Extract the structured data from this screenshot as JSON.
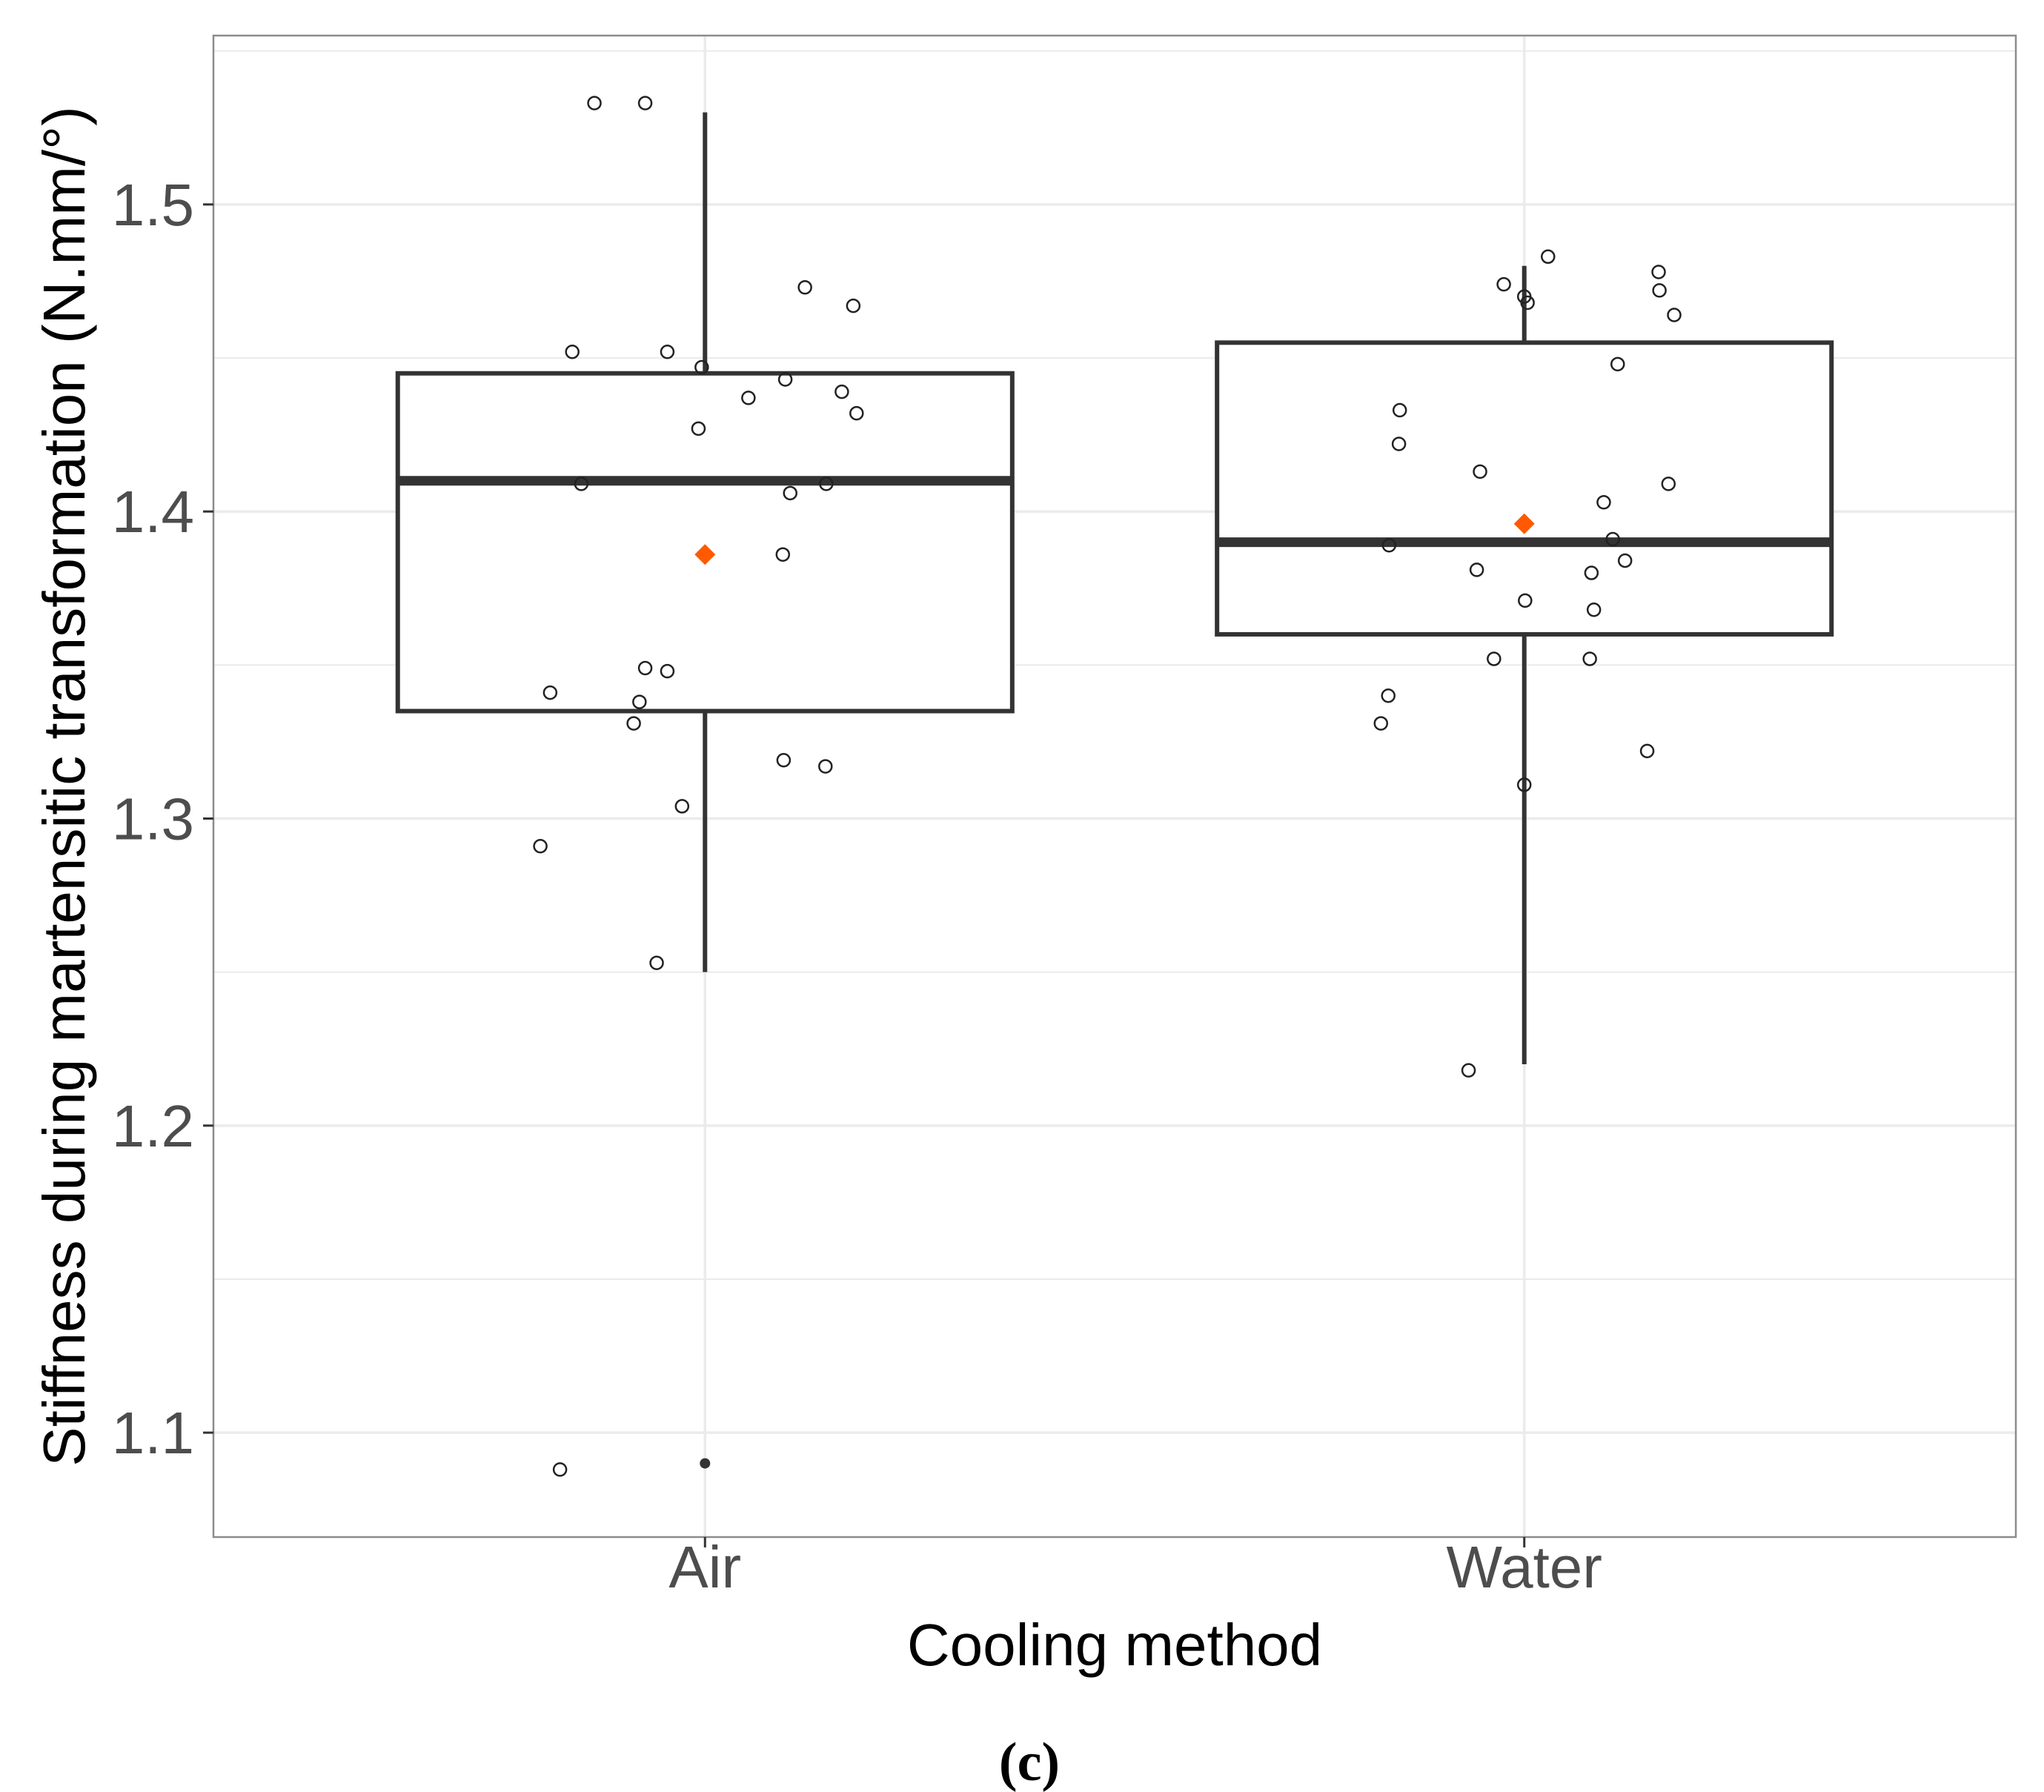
{
  "chart_data": {
    "type": "boxplot",
    "xlabel": "Cooling method",
    "ylabel": "Stiffness during martensitic transformation (N.mm/°)",
    "ylim": [
      1.066,
      1.555
    ],
    "yticks": [
      1.1,
      1.2,
      1.3,
      1.4,
      1.5
    ],
    "ytick_labels": [
      "1.1",
      "1.2",
      "1.3",
      "1.4",
      "1.5"
    ],
    "grid": true,
    "caption": "(c)",
    "colors": {
      "box": "#333333",
      "mean": "#ff5a00",
      "grid": "#ebebeb",
      "panel_border": "#8c8c8c"
    },
    "categories": [
      "Air",
      "Water"
    ],
    "groups": [
      {
        "name": "Air",
        "q1": 1.335,
        "median": 1.41,
        "q3": 1.445,
        "whisker_low": 1.25,
        "whisker_high": 1.53,
        "mean": 1.386,
        "outliers": [
          1.09
        ],
        "points": [
          {
            "jitter": -0.135,
            "value": 1.533
          },
          {
            "jitter": -0.073,
            "value": 1.533
          },
          {
            "jitter": 0.122,
            "value": 1.473
          },
          {
            "jitter": 0.181,
            "value": 1.467
          },
          {
            "jitter": -0.162,
            "value": 1.452
          },
          {
            "jitter": -0.046,
            "value": 1.452
          },
          {
            "jitter": -0.004,
            "value": 1.447
          },
          {
            "jitter": 0.098,
            "value": 1.443
          },
          {
            "jitter": 0.167,
            "value": 1.439
          },
          {
            "jitter": 0.053,
            "value": 1.437
          },
          {
            "jitter": 0.185,
            "value": 1.432
          },
          {
            "jitter": -0.008,
            "value": 1.427
          },
          {
            "jitter": -0.151,
            "value": 1.409
          },
          {
            "jitter": 0.148,
            "value": 1.409
          },
          {
            "jitter": 0.104,
            "value": 1.406
          },
          {
            "jitter": 0.095,
            "value": 1.386
          },
          {
            "jitter": -0.073,
            "value": 1.349
          },
          {
            "jitter": -0.046,
            "value": 1.348
          },
          {
            "jitter": -0.189,
            "value": 1.341
          },
          {
            "jitter": -0.08,
            "value": 1.338
          },
          {
            "jitter": -0.087,
            "value": 1.331
          },
          {
            "jitter": 0.096,
            "value": 1.319
          },
          {
            "jitter": 0.147,
            "value": 1.317
          },
          {
            "jitter": -0.028,
            "value": 1.304
          },
          {
            "jitter": -0.201,
            "value": 1.291
          },
          {
            "jitter": -0.059,
            "value": 1.253
          },
          {
            "jitter": -0.177,
            "value": 1.088
          }
        ]
      },
      {
        "name": "Water",
        "q1": 1.36,
        "median": 1.39,
        "q3": 1.455,
        "whisker_low": 1.22,
        "whisker_high": 1.48,
        "mean": 1.396,
        "outliers": [],
        "points": [
          {
            "jitter": 0.029,
            "value": 1.483
          },
          {
            "jitter": 0.164,
            "value": 1.478
          },
          {
            "jitter": -0.025,
            "value": 1.474
          },
          {
            "jitter": 0.165,
            "value": 1.472
          },
          {
            "jitter": 0.0,
            "value": 1.47
          },
          {
            "jitter": 0.004,
            "value": 1.468
          },
          {
            "jitter": 0.183,
            "value": 1.464
          },
          {
            "jitter": 0.114,
            "value": 1.448
          },
          {
            "jitter": -0.152,
            "value": 1.433
          },
          {
            "jitter": -0.153,
            "value": 1.422
          },
          {
            "jitter": -0.054,
            "value": 1.413
          },
          {
            "jitter": 0.176,
            "value": 1.409
          },
          {
            "jitter": 0.097,
            "value": 1.403
          },
          {
            "jitter": 0.108,
            "value": 1.391
          },
          {
            "jitter": -0.165,
            "value": 1.389
          },
          {
            "jitter": 0.123,
            "value": 1.384
          },
          {
            "jitter": -0.058,
            "value": 1.381
          },
          {
            "jitter": 0.082,
            "value": 1.38
          },
          {
            "jitter": 0.001,
            "value": 1.371
          },
          {
            "jitter": 0.085,
            "value": 1.368
          },
          {
            "jitter": -0.037,
            "value": 1.352
          },
          {
            "jitter": 0.08,
            "value": 1.352
          },
          {
            "jitter": -0.166,
            "value": 1.34
          },
          {
            "jitter": -0.175,
            "value": 1.331
          },
          {
            "jitter": 0.15,
            "value": 1.322
          },
          {
            "jitter": 0.0,
            "value": 1.311
          },
          {
            "jitter": -0.068,
            "value": 1.218
          }
        ]
      }
    ]
  }
}
